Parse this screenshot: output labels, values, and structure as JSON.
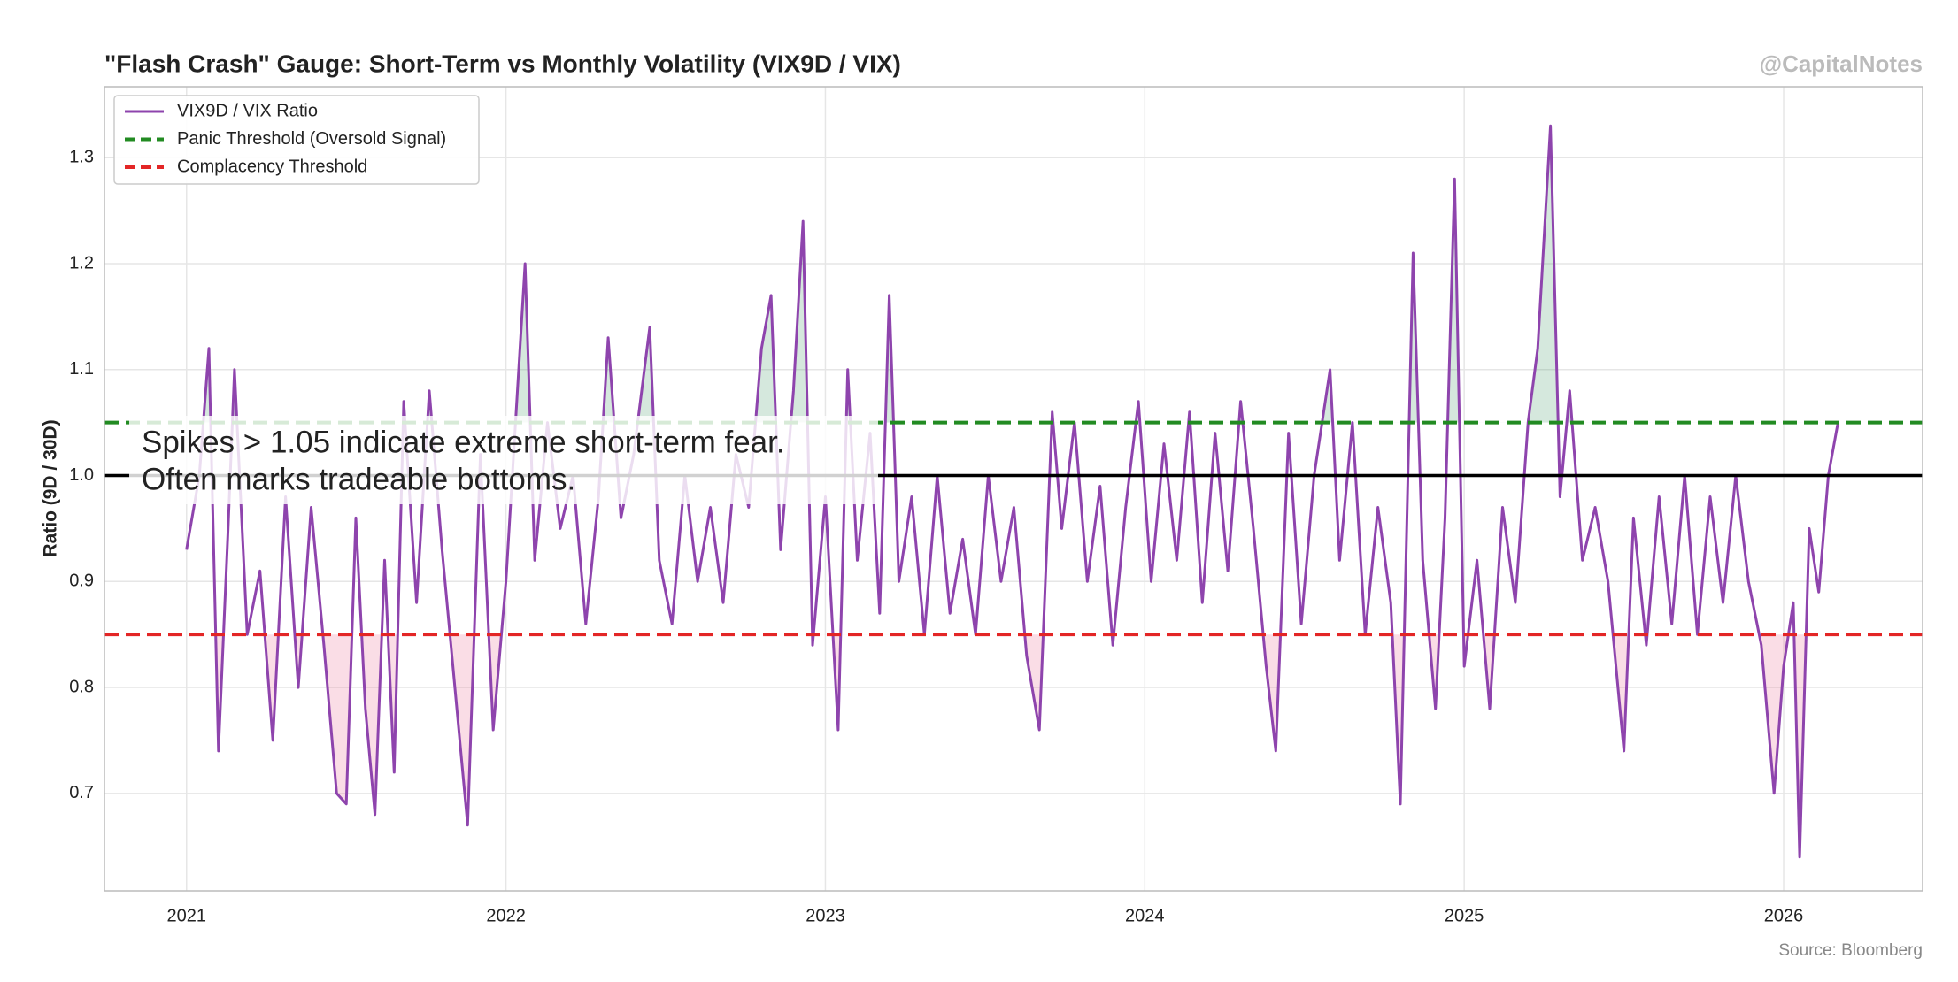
{
  "chart_data": {
    "type": "line",
    "title": "\"Flash Crash\" Gauge: Short-Term vs Monthly Volatility (VIX9D / VIX)",
    "watermark": "@CapitalNotes",
    "source": "Source: Bloomberg",
    "ylabel": "Ratio (9D / 30D)",
    "annotation": [
      "Spikes > 1.05 indicate extreme short-term fear.",
      "Often marks tradeable bottoms."
    ],
    "xlim": [
      2020.743,
      2026.435
    ],
    "xticks": [
      2021,
      2022,
      2023,
      2024,
      2025,
      2026
    ],
    "ylim": [
      0.608,
      1.367
    ],
    "yticks": [
      0.7,
      0.8,
      0.9,
      {
        "value": 1,
        "label": "1.0"
      },
      1.1,
      1.2,
      1.3
    ],
    "grid": true,
    "legend": "upper left",
    "x": [
      2021.0,
      2021.04,
      2021.07,
      2021.1,
      2021.13,
      2021.15,
      2021.19,
      2021.23,
      2021.27,
      2021.31,
      2021.35,
      2021.39,
      2021.43,
      2021.47,
      2021.5,
      2021.53,
      2021.56,
      2021.59,
      2021.62,
      2021.65,
      2021.68,
      2021.72,
      2021.76,
      2021.8,
      2021.84,
      2021.88,
      2021.92,
      2021.96,
      2022.0,
      2022.03,
      2022.06,
      2022.09,
      2022.13,
      2022.17,
      2022.21,
      2022.25,
      2022.29,
      2022.32,
      2022.36,
      2022.4,
      2022.45,
      2022.48,
      2022.52,
      2022.56,
      2022.6,
      2022.64,
      2022.68,
      2022.72,
      2022.76,
      2022.8,
      2022.83,
      2022.86,
      2022.9,
      2022.93,
      2022.96,
      2023.0,
      2023.04,
      2023.07,
      2023.1,
      2023.14,
      2023.17,
      2023.2,
      2023.23,
      2023.27,
      2023.31,
      2023.35,
      2023.39,
      2023.43,
      2023.47,
      2023.51,
      2023.55,
      2023.59,
      2023.63,
      2023.67,
      2023.71,
      2023.74,
      2023.78,
      2023.82,
      2023.86,
      2023.9,
      2023.94,
      2023.98,
      2024.02,
      2024.06,
      2024.1,
      2024.14,
      2024.18,
      2024.22,
      2024.26,
      2024.3,
      2024.34,
      2024.38,
      2024.41,
      2024.45,
      2024.49,
      2024.53,
      2024.58,
      2024.61,
      2024.65,
      2024.69,
      2024.73,
      2024.77,
      2024.8,
      2024.84,
      2024.87,
      2024.91,
      2024.94,
      2024.97,
      2025.0,
      2025.04,
      2025.08,
      2025.12,
      2025.16,
      2025.2,
      2025.23,
      2025.27,
      2025.3,
      2025.33,
      2025.37,
      2025.41,
      2025.45,
      2025.5,
      2025.53,
      2025.57,
      2025.61,
      2025.65,
      2025.69,
      2025.73,
      2025.77,
      2025.81,
      2025.85,
      2025.89,
      2025.93,
      2025.97,
      2026.0,
      2026.03,
      2026.05,
      2026.08,
      2026.11,
      2026.14,
      2026.17
    ],
    "series": [
      {
        "name": "VIX9D / VIX Ratio",
        "color": "#8e44ad",
        "values": [
          0.93,
          1.0,
          1.12,
          0.74,
          0.95,
          1.1,
          0.85,
          0.91,
          0.75,
          0.98,
          0.8,
          0.97,
          0.84,
          0.7,
          0.69,
          0.96,
          0.78,
          0.68,
          0.92,
          0.72,
          1.07,
          0.88,
          1.08,
          0.93,
          0.8,
          0.67,
          1.02,
          0.76,
          0.9,
          1.05,
          1.2,
          0.92,
          1.05,
          0.95,
          1.0,
          0.86,
          0.98,
          1.13,
          0.96,
          1.02,
          1.14,
          0.92,
          0.86,
          1.0,
          0.9,
          0.97,
          0.88,
          1.02,
          0.97,
          1.12,
          1.17,
          0.93,
          1.08,
          1.24,
          0.84,
          0.98,
          0.76,
          1.1,
          0.92,
          1.04,
          0.87,
          1.17,
          0.9,
          0.98,
          0.85,
          1.0,
          0.87,
          0.94,
          0.85,
          1.0,
          0.9,
          0.97,
          0.83,
          0.76,
          1.06,
          0.95,
          1.05,
          0.9,
          0.99,
          0.84,
          0.97,
          1.07,
          0.9,
          1.03,
          0.92,
          1.06,
          0.88,
          1.04,
          0.91,
          1.07,
          0.95,
          0.82,
          0.74,
          1.04,
          0.86,
          1.0,
          1.1,
          0.92,
          1.05,
          0.85,
          0.97,
          0.88,
          0.69,
          1.21,
          0.92,
          0.78,
          0.96,
          1.28,
          0.82,
          0.92,
          0.78,
          0.97,
          0.88,
          1.05,
          1.12,
          1.33,
          0.98,
          1.08,
          0.92,
          0.97,
          0.9,
          0.74,
          0.96,
          0.84,
          0.98,
          0.86,
          1.0,
          0.85,
          0.98,
          0.88,
          1.0,
          0.9,
          0.84,
          0.7,
          0.82,
          0.88,
          0.64,
          0.95,
          0.89,
          1.0,
          1.05
        ]
      }
    ],
    "thresholds": [
      {
        "name": "Panic Threshold (Oversold Signal)",
        "value": 1.05,
        "color": "#228b22",
        "fill": "#2e8b57",
        "side": "above"
      },
      {
        "name": "Complacency Threshold",
        "value": 0.85,
        "color": "#e32626",
        "fill": "#e75480",
        "side": "below"
      }
    ],
    "reference_line": {
      "value": 1,
      "color": "#000000"
    }
  }
}
